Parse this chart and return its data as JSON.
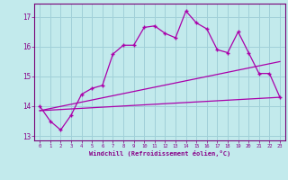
{
  "xlabel": "Windchill (Refroidissement éolien,°C)",
  "background_color": "#c2eaec",
  "grid_color": "#a0d0d8",
  "line_color": "#aa00aa",
  "text_color": "#880088",
  "x_hours": [
    0,
    1,
    2,
    3,
    4,
    5,
    6,
    7,
    8,
    9,
    10,
    11,
    12,
    13,
    14,
    15,
    16,
    17,
    18,
    19,
    20,
    21,
    22,
    23
  ],
  "series1": [
    14.0,
    13.5,
    13.2,
    13.7,
    14.4,
    14.6,
    14.7,
    15.75,
    16.05,
    16.05,
    16.65,
    16.7,
    16.45,
    16.3,
    17.2,
    16.8,
    16.6,
    15.9,
    15.8,
    16.5,
    15.8,
    15.1,
    15.1,
    14.3
  ],
  "line2_x": [
    0,
    23
  ],
  "line2_y": [
    13.85,
    15.5
  ],
  "line3_x": [
    0,
    23
  ],
  "line3_y": [
    13.85,
    14.3
  ],
  "ylim": [
    12.85,
    17.45
  ],
  "xlim": [
    -0.5,
    23.5
  ],
  "yticks": [
    13,
    14,
    15,
    16,
    17
  ],
  "xticks": [
    0,
    1,
    2,
    3,
    4,
    5,
    6,
    7,
    8,
    9,
    10,
    11,
    12,
    13,
    14,
    15,
    16,
    17,
    18,
    19,
    20,
    21,
    22,
    23
  ]
}
